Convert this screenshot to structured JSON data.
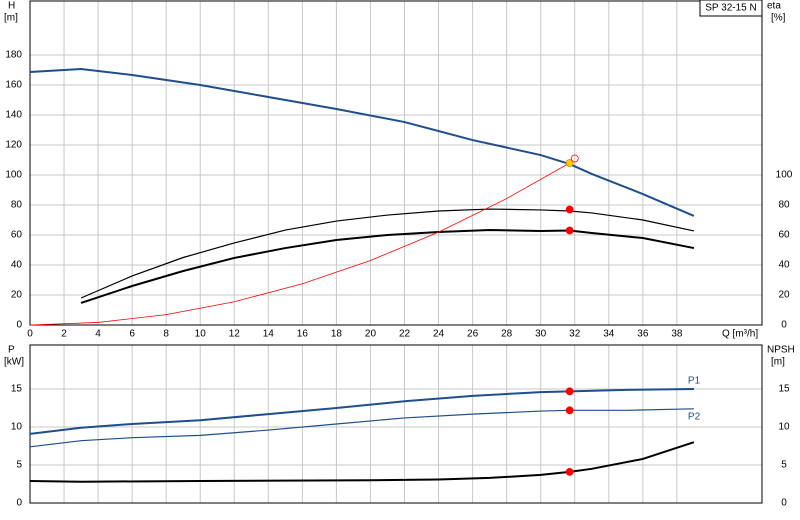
{
  "chart_data": [
    {
      "type": "line",
      "label_box": "SP 32-15 N",
      "ylabel": [
        "H",
        "[m]"
      ],
      "y2label": [
        "eta",
        "[%]"
      ],
      "xlabel": "Q [m³/h]",
      "xlim": [
        0,
        43
      ],
      "xticks": [
        0,
        2,
        4,
        6,
        8,
        10,
        12,
        14,
        16,
        18,
        20,
        22,
        24,
        26,
        28,
        30,
        32,
        34,
        36,
        38
      ],
      "ylim": [
        0,
        216
      ],
      "yticks": [
        0,
        20,
        40,
        60,
        80,
        100,
        120,
        140,
        160,
        180
      ],
      "y2lim": [
        0,
        216
      ],
      "y2ticks": [
        0,
        20,
        40,
        60,
        80,
        100
      ],
      "grid": true,
      "series": [
        {
          "color": "#1f4e8c",
          "x": [
            0,
            3,
            6,
            10,
            14,
            18,
            22,
            26,
            30,
            31.7,
            33,
            36,
            39
          ],
          "values": [
            168.7,
            170.7,
            166.7,
            160,
            152,
            144,
            135.3,
            123.3,
            113.3,
            107.3,
            100.7,
            87.3,
            72.7
          ]
        },
        {
          "color": "#000000",
          "axis": "y2",
          "x": [
            3,
            6,
            9,
            12,
            15,
            18,
            21,
            24,
            27,
            30,
            31.7,
            33,
            36,
            39
          ],
          "values": [
            18,
            32.7,
            45,
            54.7,
            63.3,
            69.3,
            73.3,
            76,
            77.3,
            76.7,
            76,
            74.7,
            70,
            62.7
          ]
        },
        {
          "color": "#000000",
          "axis": "y2",
          "x": [
            3,
            6,
            9,
            12,
            15,
            18,
            21,
            24,
            27,
            30,
            31.7,
            33,
            36,
            39
          ],
          "values": [
            14.7,
            26,
            36,
            44.7,
            51.3,
            56.7,
            60,
            62,
            63.3,
            62.7,
            63,
            61.3,
            58,
            51.3
          ]
        },
        {
          "color": "#ff0000",
          "x": [
            0,
            4,
            8,
            12,
            16,
            20,
            24,
            28,
            31.7
          ],
          "values": [
            0,
            1.7,
            6.9,
            15.5,
            27.5,
            43,
            61.9,
            84.3,
            108
          ]
        }
      ],
      "markers": [
        {
          "x": 31.7,
          "y": 108,
          "color": "#ffcc00"
        },
        {
          "x": 32,
          "y": 111,
          "color": "#ff0000",
          "filled": false
        },
        {
          "x": 31.7,
          "y": 77,
          "color": "#ff0000",
          "axis": "y2"
        },
        {
          "x": 31.7,
          "y": 63,
          "color": "#ff0000",
          "axis": "y2"
        }
      ]
    },
    {
      "type": "line",
      "ylabel": [
        "P",
        "[kW]"
      ],
      "y2label": [
        "NPSH",
        "[m]"
      ],
      "xlim": [
        0,
        43
      ],
      "ylim": [
        0,
        20.8
      ],
      "yticks": [
        0,
        5,
        10,
        15
      ],
      "y2lim": [
        0,
        20.8
      ],
      "y2ticks": [
        0,
        5,
        10,
        15
      ],
      "grid": true,
      "series": [
        {
          "name": "P1",
          "color": "#1f4e8c",
          "x": [
            0,
            3,
            6,
            10,
            14,
            18,
            22,
            26,
            30,
            31.7,
            35,
            39
          ],
          "values": [
            9.1,
            9.9,
            10.4,
            10.9,
            11.7,
            12.5,
            13.4,
            14.1,
            14.6,
            14.7,
            14.9,
            15
          ]
        },
        {
          "name": "P2",
          "color": "#1f4e8c",
          "x": [
            0,
            3,
            6,
            10,
            14,
            18,
            22,
            26,
            30,
            31.7,
            35,
            39
          ],
          "values": [
            7.4,
            8.2,
            8.6,
            8.9,
            9.6,
            10.4,
            11.2,
            11.7,
            12.1,
            12.2,
            12.2,
            12.4
          ]
        },
        {
          "color": "#000000",
          "axis": "y2",
          "x": [
            0,
            3,
            10,
            20,
            24,
            27,
            30,
            31.7,
            33,
            36,
            39
          ],
          "values": [
            2.9,
            2.8,
            2.9,
            3,
            3.1,
            3.3,
            3.7,
            4.1,
            4.5,
            5.8,
            8
          ]
        }
      ],
      "markers": [
        {
          "x": 31.7,
          "y": 14.7,
          "color": "#ff0000"
        },
        {
          "x": 31.7,
          "y": 12.2,
          "color": "#ff0000"
        },
        {
          "x": 31.7,
          "y": 4.1,
          "color": "#ff0000",
          "axis": "y2"
        }
      ]
    }
  ]
}
